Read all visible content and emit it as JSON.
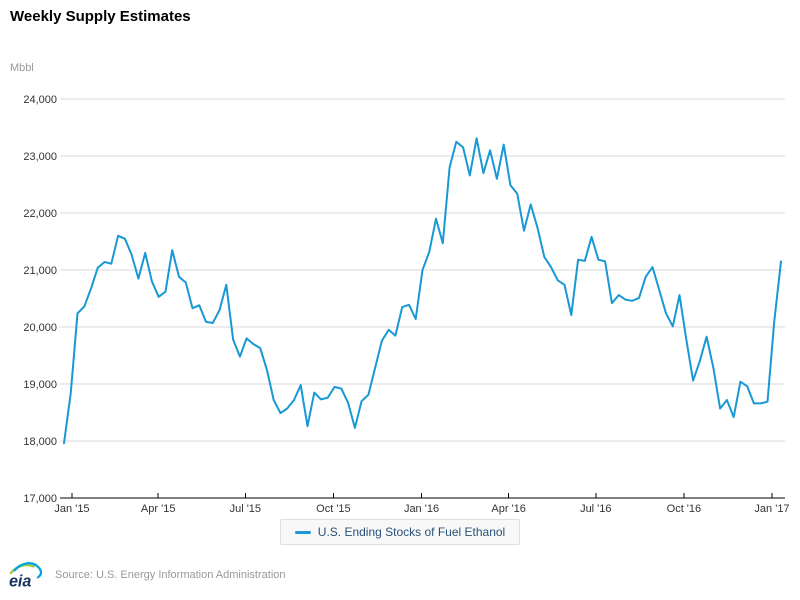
{
  "title": "Weekly Supply Estimates",
  "y_unit": "Mbbl",
  "legend": {
    "label": "U.S. Ending Stocks of Fuel Ethanol"
  },
  "footer": {
    "logo_text": "eia",
    "source": "Source: U.S. Energy Information Administration"
  },
  "colors": {
    "line": "#1898d5",
    "grid": "#d9d9d9",
    "axis": "#000000",
    "tick_label": "#333333",
    "legend_text": "#29527a",
    "muted_text": "#999999",
    "logo_green": "#9fc63b",
    "logo_blue": "#00a4e3",
    "logo_text_color": "#16365d"
  },
  "chart_data": {
    "type": "line",
    "title": "Weekly Supply Estimates",
    "ylabel": "Mbbl",
    "ylim": [
      17000,
      24000
    ],
    "grid": "horizontal",
    "legend_position": "bottom",
    "x_tick_labels": [
      "Jan '15",
      "Apr '15",
      "Jul '15",
      "Oct '15",
      "Jan '16",
      "Apr '16",
      "Jul '16",
      "Oct '16",
      "Jan '17"
    ],
    "y_ticks": [
      17000,
      18000,
      19000,
      20000,
      21000,
      22000,
      23000,
      24000
    ],
    "y_tick_labels": [
      "17,000",
      "18,000",
      "19,000",
      "20,000",
      "21,000",
      "22,000",
      "23,000",
      "24,000"
    ],
    "x_range_note": "weekly data, late Dec 2014 through mid Jan 2017",
    "series": [
      {
        "name": "U.S. Ending Stocks of Fuel Ethanol",
        "values": [
          17960,
          18850,
          20240,
          20360,
          20680,
          21040,
          21140,
          21110,
          21600,
          21550,
          21270,
          20850,
          21300,
          20800,
          20530,
          20620,
          21350,
          20880,
          20780,
          20330,
          20380,
          20090,
          20070,
          20300,
          20740,
          19780,
          19480,
          19800,
          19700,
          19630,
          19250,
          18720,
          18490,
          18570,
          18720,
          18980,
          18260,
          18850,
          18730,
          18760,
          18950,
          18920,
          18670,
          18230,
          18700,
          18810,
          19290,
          19760,
          19950,
          19850,
          20350,
          20390,
          20140,
          21000,
          21320,
          21900,
          21470,
          22800,
          23250,
          23150,
          22660,
          23310,
          22700,
          23100,
          22600,
          23200,
          22490,
          22340,
          21690,
          22150,
          21740,
          21230,
          21050,
          20820,
          20740,
          20210,
          21180,
          21160,
          21580,
          21180,
          21150,
          20420,
          20560,
          20480,
          20460,
          20510,
          20880,
          21050,
          20650,
          20240,
          20010,
          20560,
          19780,
          19060,
          19400,
          19830,
          19280,
          18570,
          18720,
          18420,
          19040,
          18960,
          18660,
          18660,
          18690,
          20090,
          21150
        ]
      }
    ]
  }
}
